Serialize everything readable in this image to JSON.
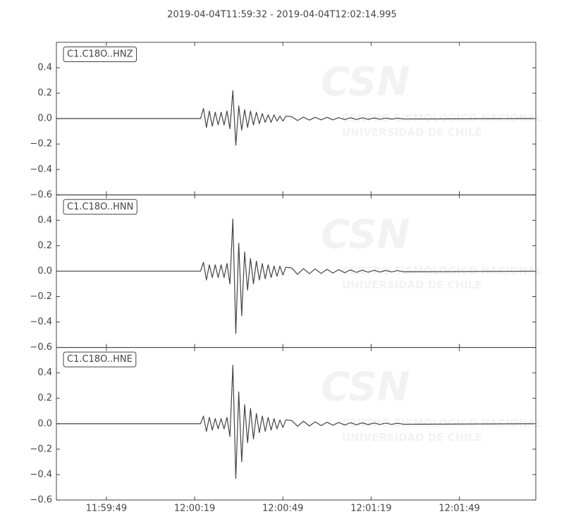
{
  "chart_data": [
    {
      "type": "line",
      "title": "2019-04-04T11:59:32  -  2019-04-04T12:02:14.995",
      "x": [
        "11:59:32",
        "12:00:21",
        "12:00:22",
        "12:00:23",
        "12:00:24",
        "12:00:25",
        "12:00:26",
        "12:00:27",
        "12:00:28",
        "12:00:29",
        "12:00:30",
        "12:00:31",
        "12:00:32",
        "12:00:33",
        "12:00:34",
        "12:00:35",
        "12:00:36",
        "12:00:37",
        "12:00:38",
        "12:00:39",
        "12:00:40",
        "12:00:41",
        "12:00:42",
        "12:00:43",
        "12:00:44",
        "12:00:45",
        "12:00:46",
        "12:00:47",
        "12:00:48",
        "12:00:49",
        "12:00:50",
        "12:00:52",
        "12:00:54",
        "12:00:56",
        "12:00:58",
        "12:01:00",
        "12:01:02",
        "12:01:04",
        "12:01:06",
        "12:01:08",
        "12:01:10",
        "12:01:12",
        "12:01:14",
        "12:01:16",
        "12:01:18",
        "12:01:20",
        "12:01:22",
        "12:01:24",
        "12:01:26",
        "12:01:28",
        "12:01:30",
        "12:02:14"
      ],
      "series": [
        {
          "name": "C1.C18O..HNZ",
          "color": "#444444",
          "values": [
            0,
            0,
            0.08,
            -0.07,
            0.06,
            -0.06,
            0.05,
            -0.05,
            0.05,
            -0.05,
            0.06,
            -0.08,
            0.22,
            -0.21,
            0.1,
            -0.09,
            0.07,
            -0.07,
            0.06,
            -0.05,
            0.05,
            -0.04,
            0.04,
            -0.03,
            0.03,
            -0.03,
            0.03,
            -0.02,
            0.02,
            -0.02,
            0.02,
            0.015,
            -0.015,
            0.012,
            -0.012,
            0.01,
            -0.01,
            0.01,
            -0.01,
            0.008,
            -0.008,
            0.007,
            -0.007,
            0.006,
            -0.006,
            0.005,
            -0.005,
            0.004,
            -0.004,
            0.003,
            -0.003,
            0
          ]
        }
      ],
      "xlim": [
        "11:59:32",
        "12:02:14.995"
      ],
      "xticks": [
        "11:59:49",
        "12:00:19",
        "12:00:49",
        "12:01:19",
        "12:01:49"
      ],
      "ylim": [
        -0.6,
        0.6
      ],
      "yticks": [
        {
          "value": -0.6,
          "label": "−0.6"
        },
        {
          "value": -0.4,
          "label": "−0.4"
        },
        {
          "value": -0.2,
          "label": "−0.2"
        },
        {
          "value": 0,
          "label": "0.0"
        },
        {
          "value": 0.2,
          "label": "0.2"
        },
        {
          "value": 0.4,
          "label": "0.4"
        }
      ]
    },
    {
      "type": "line",
      "x": [
        "11:59:32",
        "12:00:21",
        "12:00:22",
        "12:00:23",
        "12:00:24",
        "12:00:25",
        "12:00:26",
        "12:00:27",
        "12:00:28",
        "12:00:29",
        "12:00:30",
        "12:00:31",
        "12:00:32",
        "12:00:33",
        "12:00:34",
        "12:00:35",
        "12:00:36",
        "12:00:37",
        "12:00:38",
        "12:00:39",
        "12:00:40",
        "12:00:41",
        "12:00:42",
        "12:00:43",
        "12:00:44",
        "12:00:45",
        "12:00:46",
        "12:00:47",
        "12:00:48",
        "12:00:49",
        "12:00:50",
        "12:00:52",
        "12:00:54",
        "12:00:56",
        "12:00:58",
        "12:01:00",
        "12:01:02",
        "12:01:04",
        "12:01:06",
        "12:01:08",
        "12:01:10",
        "12:01:12",
        "12:01:14",
        "12:01:16",
        "12:01:18",
        "12:01:20",
        "12:01:22",
        "12:01:24",
        "12:01:26",
        "12:01:28",
        "12:01:30",
        "12:02:14"
      ],
      "series": [
        {
          "name": "C1.C18O..HNN",
          "color": "#444444",
          "values": [
            0,
            0,
            0.07,
            -0.07,
            0.05,
            -0.05,
            0.05,
            -0.05,
            0.05,
            -0.05,
            0.06,
            -0.1,
            0.41,
            -0.49,
            0.22,
            -0.35,
            0.15,
            -0.15,
            0.1,
            -0.1,
            0.08,
            -0.07,
            0.06,
            -0.06,
            0.05,
            -0.05,
            0.04,
            -0.04,
            0.04,
            -0.03,
            0.03,
            0.025,
            -0.025,
            0.02,
            -0.02,
            0.018,
            -0.018,
            0.015,
            -0.015,
            0.012,
            -0.012,
            0.01,
            -0.01,
            0.008,
            -0.008,
            0.007,
            -0.007,
            0.006,
            -0.006,
            0.005,
            -0.005,
            0
          ]
        }
      ],
      "xlim": [
        "11:59:32",
        "12:02:14.995"
      ],
      "xticks": [
        "11:59:49",
        "12:00:19",
        "12:00:49",
        "12:01:19",
        "12:01:49"
      ],
      "ylim": [
        -0.6,
        0.6
      ],
      "yticks": [
        {
          "value": -0.6,
          "label": "−0.6"
        },
        {
          "value": -0.4,
          "label": "−0.4"
        },
        {
          "value": -0.2,
          "label": "−0.2"
        },
        {
          "value": 0,
          "label": "0.0"
        },
        {
          "value": 0.2,
          "label": "0.2"
        },
        {
          "value": 0.4,
          "label": "0.4"
        }
      ]
    },
    {
      "type": "line",
      "x": [
        "11:59:32",
        "12:00:21",
        "12:00:22",
        "12:00:23",
        "12:00:24",
        "12:00:25",
        "12:00:26",
        "12:00:27",
        "12:00:28",
        "12:00:29",
        "12:00:30",
        "12:00:31",
        "12:00:32",
        "12:00:33",
        "12:00:34",
        "12:00:35",
        "12:00:36",
        "12:00:37",
        "12:00:38",
        "12:00:39",
        "12:00:40",
        "12:00:41",
        "12:00:42",
        "12:00:43",
        "12:00:44",
        "12:00:45",
        "12:00:46",
        "12:00:47",
        "12:00:48",
        "12:00:49",
        "12:00:50",
        "12:00:52",
        "12:00:54",
        "12:00:56",
        "12:00:58",
        "12:01:00",
        "12:01:02",
        "12:01:04",
        "12:01:06",
        "12:01:08",
        "12:01:10",
        "12:01:12",
        "12:01:14",
        "12:01:16",
        "12:01:18",
        "12:01:20",
        "12:01:22",
        "12:01:24",
        "12:01:26",
        "12:01:28",
        "12:01:30",
        "12:02:14"
      ],
      "series": [
        {
          "name": "C1.C18O..HNE",
          "color": "#444444",
          "values": [
            0,
            0,
            0.06,
            -0.06,
            0.05,
            -0.05,
            0.04,
            -0.04,
            0.04,
            -0.04,
            0.05,
            -0.1,
            0.46,
            -0.43,
            0.25,
            -0.3,
            0.15,
            -0.15,
            0.12,
            -0.12,
            0.08,
            -0.07,
            0.06,
            -0.06,
            0.05,
            -0.05,
            0.04,
            -0.04,
            0.03,
            -0.03,
            0.03,
            0.025,
            -0.02,
            0.02,
            -0.018,
            0.015,
            -0.015,
            0.012,
            -0.012,
            0.01,
            -0.01,
            0.008,
            -0.008,
            0.007,
            -0.007,
            0.006,
            -0.006,
            0.005,
            -0.005,
            0.004,
            -0.004,
            0
          ]
        }
      ],
      "xlim": [
        "11:59:32",
        "12:02:14.995"
      ],
      "xticks": [
        "11:59:49",
        "12:00:19",
        "12:00:49",
        "12:01:19",
        "12:01:49"
      ],
      "ylim": [
        -0.6,
        0.6
      ],
      "yticks": [
        {
          "value": -0.6,
          "label": "−0.6"
        },
        {
          "value": -0.4,
          "label": "−0.4"
        },
        {
          "value": -0.2,
          "label": "−0.2"
        },
        {
          "value": 0,
          "label": "0.0"
        },
        {
          "value": 0.2,
          "label": "0.2"
        },
        {
          "value": 0.4,
          "label": "0.4"
        }
      ]
    }
  ],
  "watermark": {
    "logo": "CSN",
    "lines": [
      "CENTRO SISMOLOGICO NACIONAL",
      "UNIVERSIDAD DE CHILE"
    ]
  }
}
